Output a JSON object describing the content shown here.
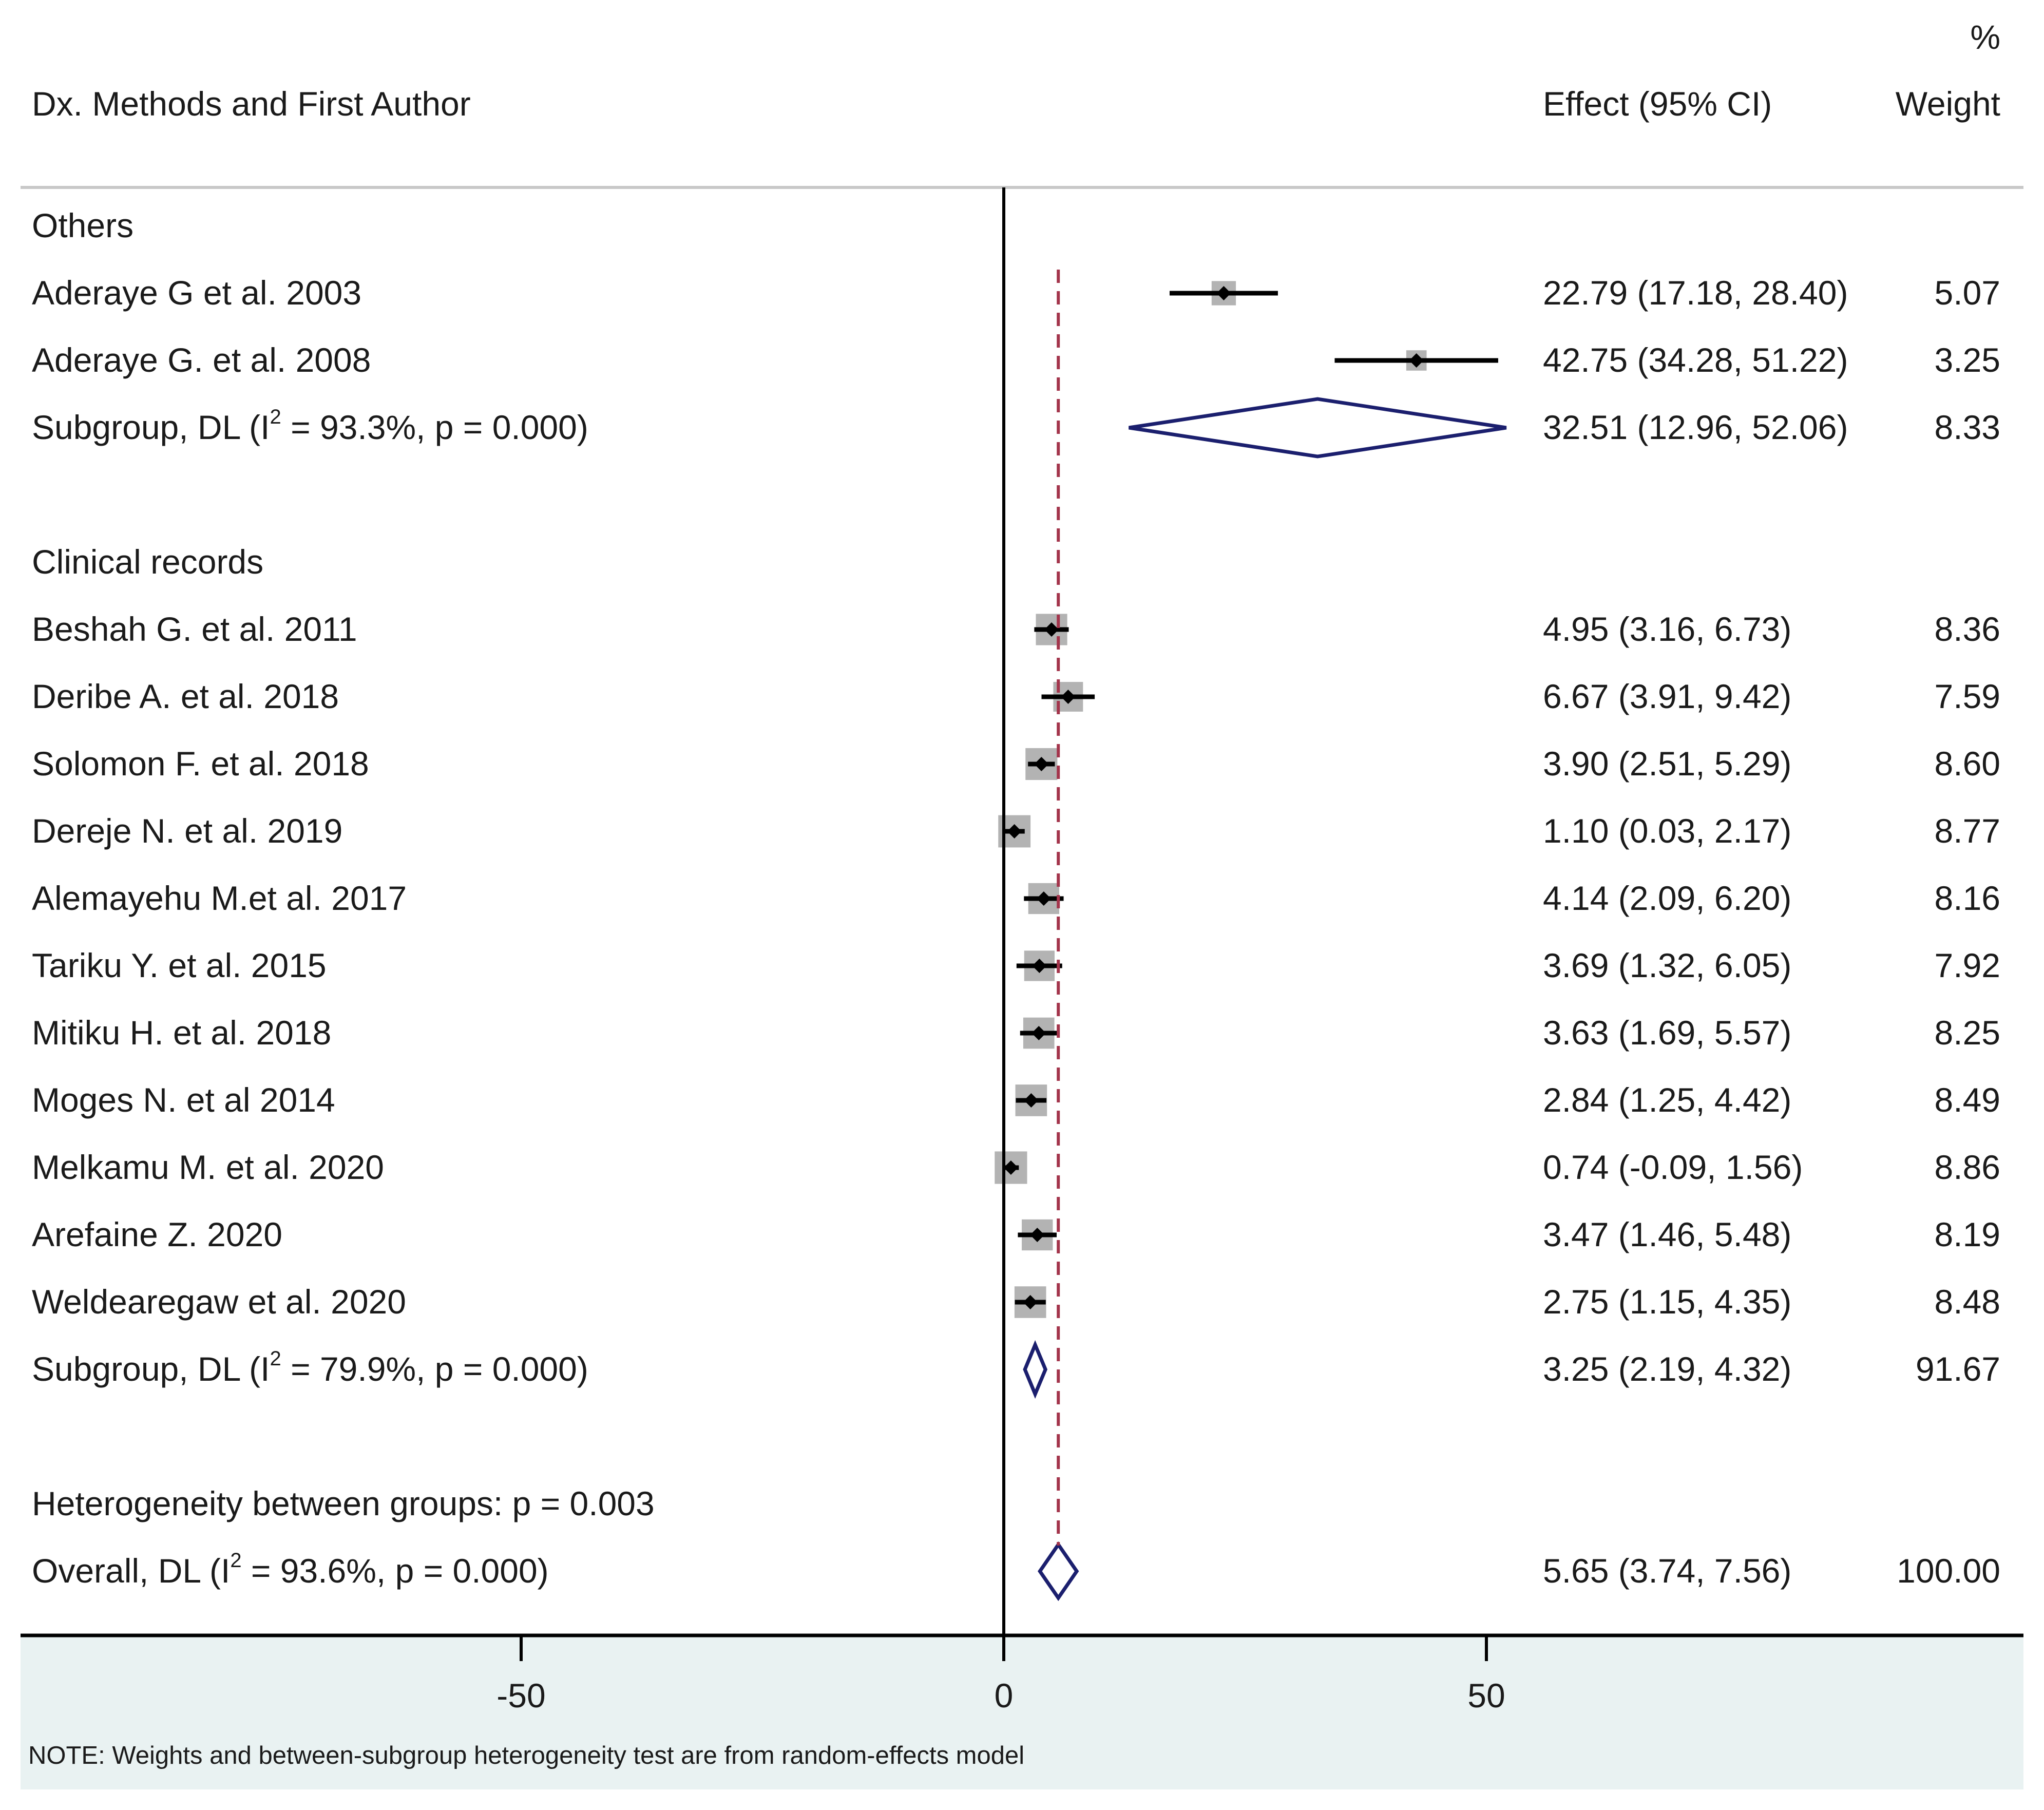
{
  "chart_data": {
    "type": "forest",
    "header": {
      "col_study": "Dx. Methods and First Author",
      "col_effect": "Effect (95% CI)",
      "col_weight_pct": "%",
      "col_weight": "Weight"
    },
    "groups": [
      {
        "name": "Others",
        "studies": [
          {
            "label": "Aderaye G et al. 2003",
            "effect": 22.79,
            "lo": 17.18,
            "hi": 28.4,
            "ci_text": "22.79 (17.18, 28.40)",
            "weight": 5.07,
            "weight_text": "5.07"
          },
          {
            "label": "Aderaye G. et al. 2008",
            "effect": 42.75,
            "lo": 34.28,
            "hi": 51.22,
            "ci_text": "42.75 (34.28, 51.22)",
            "weight": 3.25,
            "weight_text": "3.25"
          }
        ],
        "subgroup": {
          "label_pre": "Subgroup, DL (I",
          "label_sup": "2",
          "label_post": " = 93.3%, p = 0.000)",
          "effect": 32.51,
          "lo": 12.96,
          "hi": 52.06,
          "ci_text": "32.51 (12.96, 52.06)",
          "weight_text": "8.33"
        }
      },
      {
        "name": "Clinical records",
        "studies": [
          {
            "label": "Beshah G. et al. 2011",
            "effect": 4.95,
            "lo": 3.16,
            "hi": 6.73,
            "ci_text": "4.95 (3.16, 6.73)",
            "weight": 8.36,
            "weight_text": "8.36"
          },
          {
            "label": "Deribe A.  et al. 2018",
            "effect": 6.67,
            "lo": 3.91,
            "hi": 9.42,
            "ci_text": "6.67 (3.91, 9.42)",
            "weight": 7.59,
            "weight_text": "7.59"
          },
          {
            "label": "Solomon F. et al. 2018",
            "effect": 3.9,
            "lo": 2.51,
            "hi": 5.29,
            "ci_text": "3.90 (2.51, 5.29)",
            "weight": 8.6,
            "weight_text": "8.60"
          },
          {
            "label": "Dereje N. et al. 2019",
            "effect": 1.1,
            "lo": 0.03,
            "hi": 2.17,
            "ci_text": "1.10 (0.03, 2.17)",
            "weight": 8.77,
            "weight_text": "8.77"
          },
          {
            "label": "Alemayehu M.et al. 2017",
            "effect": 4.14,
            "lo": 2.09,
            "hi": 6.2,
            "ci_text": "4.14 (2.09, 6.20)",
            "weight": 8.16,
            "weight_text": "8.16"
          },
          {
            "label": "Tariku Y. et al. 2015",
            "effect": 3.69,
            "lo": 1.32,
            "hi": 6.05,
            "ci_text": "3.69 (1.32, 6.05)",
            "weight": 7.92,
            "weight_text": "7.92"
          },
          {
            "label": "Mitiku H. et al. 2018",
            "effect": 3.63,
            "lo": 1.69,
            "hi": 5.57,
            "ci_text": "3.63 (1.69, 5.57)",
            "weight": 8.25,
            "weight_text": "8.25"
          },
          {
            "label": "Moges N. et al 2014",
            "effect": 2.84,
            "lo": 1.25,
            "hi": 4.42,
            "ci_text": "2.84 (1.25, 4.42)",
            "weight": 8.49,
            "weight_text": "8.49"
          },
          {
            "label": "Melkamu M. et al. 2020",
            "effect": 0.74,
            "lo": -0.09,
            "hi": 1.56,
            "ci_text": "0.74 (-0.09, 1.56)",
            "weight": 8.86,
            "weight_text": "8.86"
          },
          {
            "label": "Arefaine Z. 2020",
            "effect": 3.47,
            "lo": 1.46,
            "hi": 5.48,
            "ci_text": "3.47 (1.46, 5.48)",
            "weight": 8.19,
            "weight_text": "8.19"
          },
          {
            "label": "Weldearegaw et al. 2020",
            "effect": 2.75,
            "lo": 1.15,
            "hi": 4.35,
            "ci_text": "2.75 (1.15, 4.35)",
            "weight": 8.48,
            "weight_text": "8.48"
          }
        ],
        "subgroup": {
          "label_pre": "Subgroup, DL (I",
          "label_sup": "2",
          "label_post": " = 79.9%, p = 0.000)",
          "effect": 3.25,
          "lo": 2.19,
          "hi": 4.32,
          "ci_text": "3.25 (2.19, 4.32)",
          "weight_text": "91.67"
        }
      }
    ],
    "heterogeneity_text": "Heterogeneity between groups: p = 0.003",
    "overall": {
      "label_pre": "Overall, DL (I",
      "label_sup": "2",
      "label_post": " = 93.6%, p = 0.000)",
      "effect": 5.65,
      "lo": 3.74,
      "hi": 7.56,
      "ci_text": "5.65 (3.74, 7.56)",
      "weight_text": "100.00"
    },
    "x_axis": {
      "min": -100,
      "max": 105,
      "ticks": [
        -50,
        0,
        50
      ],
      "tick_labels": [
        "-50",
        "0",
        "50"
      ],
      "null_line": 0
    },
    "note": "NOTE: Weights and between-subgroup heterogeneity test are from random-effects model",
    "colors": {
      "diamond": "#1b1f6e",
      "overall_line": "#a3344b",
      "weight_box": "#b3b3b3",
      "axis_band": "#e9f2f2",
      "text": "#1a1a1a",
      "separator": "#c8c8c8"
    }
  }
}
